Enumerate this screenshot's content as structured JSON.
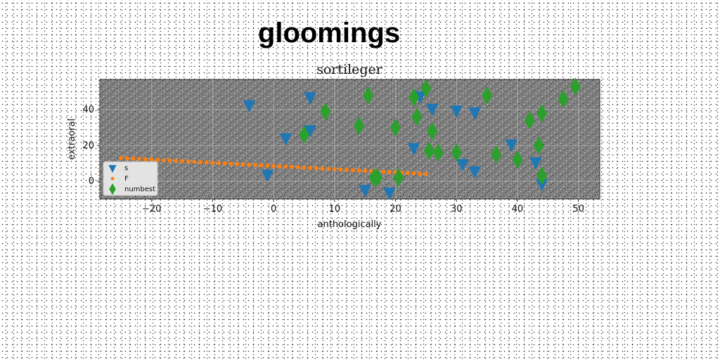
{
  "header": {
    "suptitle": "gloomings"
  },
  "colors": {
    "axes_bg": "#808080",
    "grid": "#b0b0b0",
    "s": "#1f77b4",
    "F": "#ff7f0e",
    "numbest": "#2ca02c"
  },
  "chart_data": {
    "type": "scatter",
    "title": "sortileger",
    "xlabel": "anthologically",
    "ylabel": "extraoral",
    "xlim": [
      -28.5,
      53.5
    ],
    "ylim": [
      -10,
      57
    ],
    "xticks": [
      -20,
      -10,
      0,
      10,
      20,
      30,
      40,
      50
    ],
    "xtick_labels": [
      "−20",
      "−10",
      "0",
      "10",
      "20",
      "30",
      "40",
      "50"
    ],
    "yticks": [
      0,
      20,
      40
    ],
    "ytick_labels": [
      "0",
      "20",
      "40"
    ],
    "grid": true,
    "legend_position": "lower-left",
    "series": [
      {
        "name": "s",
        "marker": "triangle-down",
        "color": "#1f77b4",
        "points": [
          [
            -4,
            42
          ],
          [
            -1,
            3
          ],
          [
            2,
            23.5
          ],
          [
            6,
            46.5
          ],
          [
            6,
            28
          ],
          [
            15,
            -5.5
          ],
          [
            19,
            -7
          ],
          [
            23,
            18
          ],
          [
            24,
            47
          ],
          [
            26,
            40
          ],
          [
            30,
            39
          ],
          [
            31,
            9
          ],
          [
            33,
            38
          ],
          [
            33,
            5
          ],
          [
            39,
            20
          ],
          [
            43,
            10
          ],
          [
            44,
            -2
          ]
        ]
      },
      {
        "name": "F",
        "marker": "circle",
        "color": "#ff7f0e",
        "points": [
          [
            -25.0,
            13.0
          ],
          [
            -24.0,
            12.82
          ],
          [
            -23.0,
            12.64
          ],
          [
            -22.0,
            12.46
          ],
          [
            -21.0,
            12.28
          ],
          [
            -20.0,
            12.1
          ],
          [
            -19.0,
            11.92
          ],
          [
            -18.0,
            11.74
          ],
          [
            -17.0,
            11.56
          ],
          [
            -16.0,
            11.38
          ],
          [
            -15.0,
            11.2
          ],
          [
            -14.0,
            11.02
          ],
          [
            -13.0,
            10.84
          ],
          [
            -12.0,
            10.66
          ],
          [
            -11.0,
            10.48
          ],
          [
            -10.0,
            10.3
          ],
          [
            -9.0,
            10.12
          ],
          [
            -8.0,
            9.94
          ],
          [
            -7.0,
            9.76
          ],
          [
            -6.0,
            9.58
          ],
          [
            -5.0,
            9.4
          ],
          [
            -4.0,
            9.22
          ],
          [
            -3.0,
            9.04
          ],
          [
            -2.0,
            8.86
          ],
          [
            -1.0,
            8.68
          ],
          [
            0.0,
            8.5
          ],
          [
            1.0,
            8.32
          ],
          [
            2.0,
            8.14
          ],
          [
            3.0,
            7.96
          ],
          [
            4.0,
            7.78
          ],
          [
            5.0,
            7.6
          ],
          [
            6.0,
            7.42
          ],
          [
            7.0,
            7.24
          ],
          [
            8.0,
            7.06
          ],
          [
            9.0,
            6.88
          ],
          [
            10.0,
            6.7
          ],
          [
            11.0,
            6.52
          ],
          [
            12.0,
            6.34
          ],
          [
            13.0,
            6.16
          ],
          [
            14.0,
            5.98
          ],
          [
            15.0,
            5.8
          ],
          [
            16.0,
            5.62
          ],
          [
            17.0,
            5.44
          ],
          [
            18.0,
            5.26
          ],
          [
            19.0,
            5.08
          ],
          [
            20.0,
            4.9
          ],
          [
            21.0,
            4.72
          ],
          [
            22.0,
            4.54
          ],
          [
            23.0,
            4.36
          ],
          [
            24.0,
            4.18
          ],
          [
            25.0,
            4.0
          ]
        ]
      },
      {
        "name": "numbest",
        "marker": "thin-diamond",
        "color": "#2ca02c",
        "points": [
          [
            5,
            26
          ],
          [
            8.5,
            39
          ],
          [
            14,
            31
          ],
          [
            15.5,
            48
          ],
          [
            16.5,
            2
          ],
          [
            17,
            2
          ],
          [
            20,
            30
          ],
          [
            20.5,
            2
          ],
          [
            23,
            47
          ],
          [
            23.5,
            36
          ],
          [
            25,
            52
          ],
          [
            25.5,
            17
          ],
          [
            26,
            28
          ],
          [
            27,
            16
          ],
          [
            30,
            16
          ],
          [
            35,
            48
          ],
          [
            36.5,
            15
          ],
          [
            40,
            12
          ],
          [
            42,
            34
          ],
          [
            43.5,
            20
          ],
          [
            44,
            38
          ],
          [
            44,
            3
          ],
          [
            47.5,
            46
          ],
          [
            49.5,
            53
          ]
        ]
      }
    ]
  }
}
